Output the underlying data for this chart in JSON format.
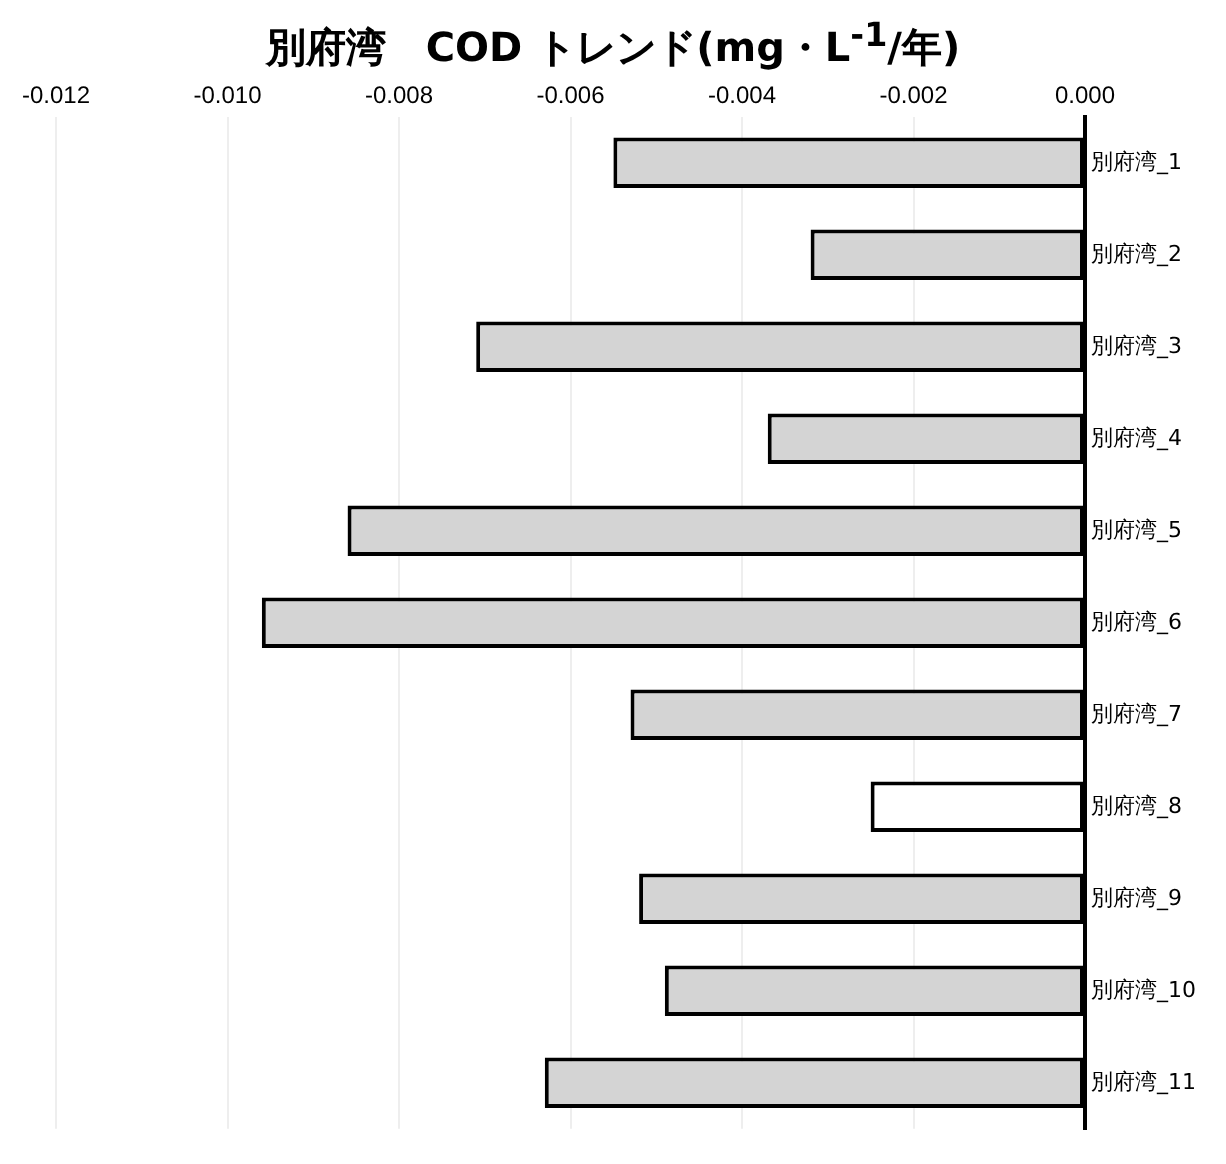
{
  "chart_data": {
    "type": "bar",
    "orientation": "horizontal",
    "title": "別府湾　COD トレンド(mg・L$^{-1}$/年)",
    "categories": [
      "別府湾_1",
      "別府湾_2",
      "別府湾_3",
      "別府湾_4",
      "別府湾_5",
      "別府湾_6",
      "別府湾_7",
      "別府湾_8",
      "別府湾_9",
      "別府湾_10",
      "別府湾_11"
    ],
    "values": [
      -0.0055,
      -0.0032,
      -0.0071,
      -0.0037,
      -0.0086,
      -0.0096,
      -0.0053,
      -0.0025,
      -0.0052,
      -0.0049,
      -0.0063
    ],
    "colors": [
      "#d4d4d4",
      "#d4d4d4",
      "#d4d4d4",
      "#d4d4d4",
      "#d4d4d4",
      "#d4d4d4",
      "#d4d4d4",
      "#ffffff",
      "#d4d4d4",
      "#d4d4d4",
      "#d4d4d4"
    ],
    "xlim": [
      -0.012,
      0
    ],
    "xticks": [
      {
        "value": -0.012,
        "label": "-0.012"
      },
      {
        "value": -0.01,
        "label": "-0.010"
      },
      {
        "value": -0.008,
        "label": "-0.008"
      },
      {
        "value": -0.006,
        "label": "-0.006"
      },
      {
        "value": -0.004,
        "label": "-0.004"
      },
      {
        "value": -0.002,
        "label": "-0.002"
      },
      {
        "value": 0,
        "label": "0.000"
      }
    ],
    "grid": "x",
    "legend": false
  }
}
